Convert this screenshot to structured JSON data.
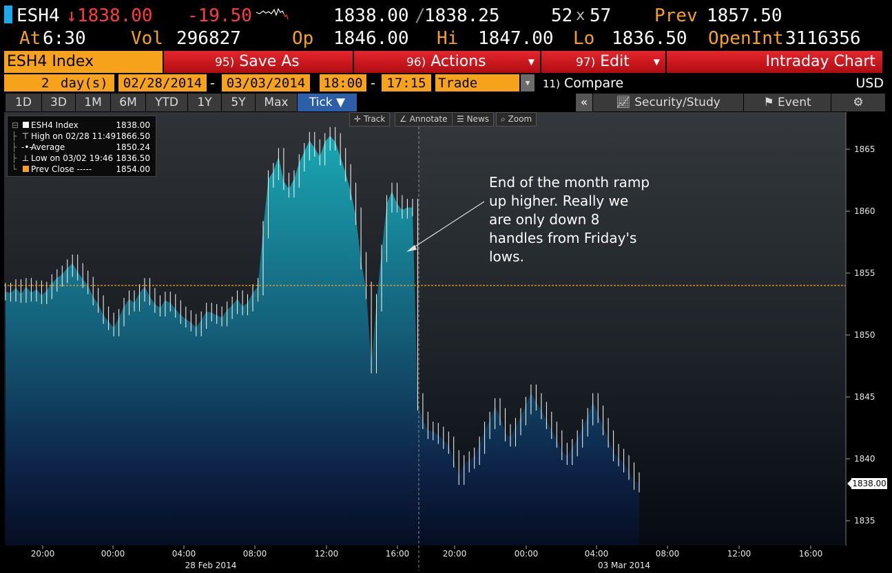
{
  "quote": {
    "ticker": "ESH4",
    "arrow": "↓",
    "last": "1838.00",
    "change": "-19.50",
    "bid": "1838.00",
    "separator": "/",
    "ask": "1838.25",
    "bid_size": "52",
    "size_x": "x",
    "ask_size": "57",
    "prev_label": "Prev",
    "prev_value": "1857.50",
    "at_label": "At",
    "time": "6:30",
    "vol_label": "Vol",
    "volume": "296827",
    "open_label": "Op",
    "open": "1846.00",
    "high_label": "Hi",
    "high": "1847.00",
    "low_label": "Lo",
    "low": "1836.50",
    "oi_label": "OpenInt",
    "open_interest": "3116356"
  },
  "menu": {
    "security": "ESH4 Index",
    "save_num": "95)",
    "save_label": "Save As",
    "actions_num": "96)",
    "actions_label": "Actions",
    "edit_num": "97)",
    "edit_label": "Edit",
    "title": "Intraday Chart"
  },
  "params": {
    "days": "2",
    "days_unit": "day(s)",
    "start_date": "02/28/2014",
    "dash1": "-",
    "end_date": "03/03/2014",
    "start_time": "18:00",
    "dash2": "-",
    "end_time": "17:15",
    "event_type": "Trade",
    "compare_num": "11)",
    "compare_label": "Compare",
    "currency": "USD"
  },
  "periods": {
    "tabs": [
      "1D",
      "3D",
      "1M",
      "6M",
      "YTD",
      "1Y",
      "5Y",
      "Max",
      "Tick ▼"
    ],
    "active": "Tick ▼",
    "collapse": "«",
    "security_study": "Security/Study",
    "event": "Event"
  },
  "toolbar": {
    "track": "Track",
    "annotate": "Annotate",
    "news": "News",
    "zoom": "Zoom"
  },
  "legend": {
    "rows": [
      {
        "label": "ESH4 Index",
        "value": "1838.00"
      },
      {
        "label": "High on 02/28 11:49",
        "value": "1866.50"
      },
      {
        "label": "Average",
        "value": "1850.24"
      },
      {
        "label": "Low on 03/02 19:46",
        "value": "1836.50"
      },
      {
        "label": "Prev Close -----",
        "value": "1854.00"
      }
    ]
  },
  "annotation": "End of the month ramp up higher. Really we are only down 8 handles from Friday's lows.",
  "colors": {
    "accent_orange": "#f7a21b",
    "menu_red": "#d51920",
    "down_red": "#ff3b3b",
    "area_teal": "#1a8a9a",
    "prev_close_line": "#f7a21b"
  },
  "chart_data": {
    "type": "area",
    "series": [
      {
        "name": "ESH4 Index",
        "values": [
          1853.5,
          1853.4,
          1853.8,
          1853.3,
          1853.9,
          1853.4,
          1853.7,
          1853.2,
          1853.6,
          1854.2,
          1854.6,
          1854.9,
          1855.4,
          1855.8,
          1855.1,
          1854.5,
          1854.0,
          1853.1,
          1852.5,
          1851.6,
          1851.1,
          1850.6,
          1851.4,
          1852.3,
          1852.9,
          1852.6,
          1853.4,
          1853.9,
          1853.1,
          1852.5,
          1852.2,
          1852.8,
          1852.6,
          1852.1,
          1851.6,
          1851.3,
          1851.0,
          1850.6,
          1851.2,
          1851.9,
          1851.8,
          1851.6,
          1851.4,
          1852.0,
          1852.4,
          1852.9,
          1852.3,
          1852.6,
          1853.4,
          1853.9,
          1858.5,
          1862.6,
          1863.2,
          1864.4,
          1862.4,
          1861.8,
          1862.6,
          1863.9,
          1864.8,
          1865.7,
          1865.1,
          1864.4,
          1865.6,
          1866.1,
          1865.6,
          1864.4,
          1863.1,
          1861.6,
          1859.6,
          1856.0,
          1853.6,
          1847.6,
          1852.6,
          1856.6,
          1860.6,
          1861.6,
          1860.6,
          1860.1,
          1860.3,
          1860.3,
          1844.6,
          1843.1,
          1842.3,
          1842.2,
          1841.9,
          1841.5,
          1841.1,
          1840.0,
          1838.6,
          1839.6,
          1839.9,
          1840.2,
          1841.1,
          1842.3,
          1843.1,
          1844.2,
          1843.4,
          1842.1,
          1841.7,
          1842.6,
          1843.4,
          1844.3,
          1845.3,
          1844.6,
          1843.9,
          1843.1,
          1842.3,
          1841.6,
          1840.6,
          1840.2,
          1840.9,
          1841.6,
          1842.5,
          1843.4,
          1844.6,
          1843.6,
          1842.6,
          1841.6,
          1840.5,
          1840.1,
          1839.6,
          1839.0,
          1838.2,
          1838.0
        ]
      }
    ],
    "x_tick_labels": [
      "20:00",
      "00:00",
      "04:00",
      "08:00",
      "12:00",
      "16:00",
      "20:00",
      "00:00",
      "04:00",
      "08:00",
      "12:00",
      "16:00"
    ],
    "date_labels": [
      "28 Feb 2014",
      "03 Mar 2014"
    ],
    "y_ticks": [
      1835,
      1840,
      1845,
      1850,
      1855,
      1860,
      1865
    ],
    "ylim": [
      1833,
      1868
    ],
    "prev_close": 1854.0,
    "last_price_label": "1838.00",
    "grid": false
  }
}
